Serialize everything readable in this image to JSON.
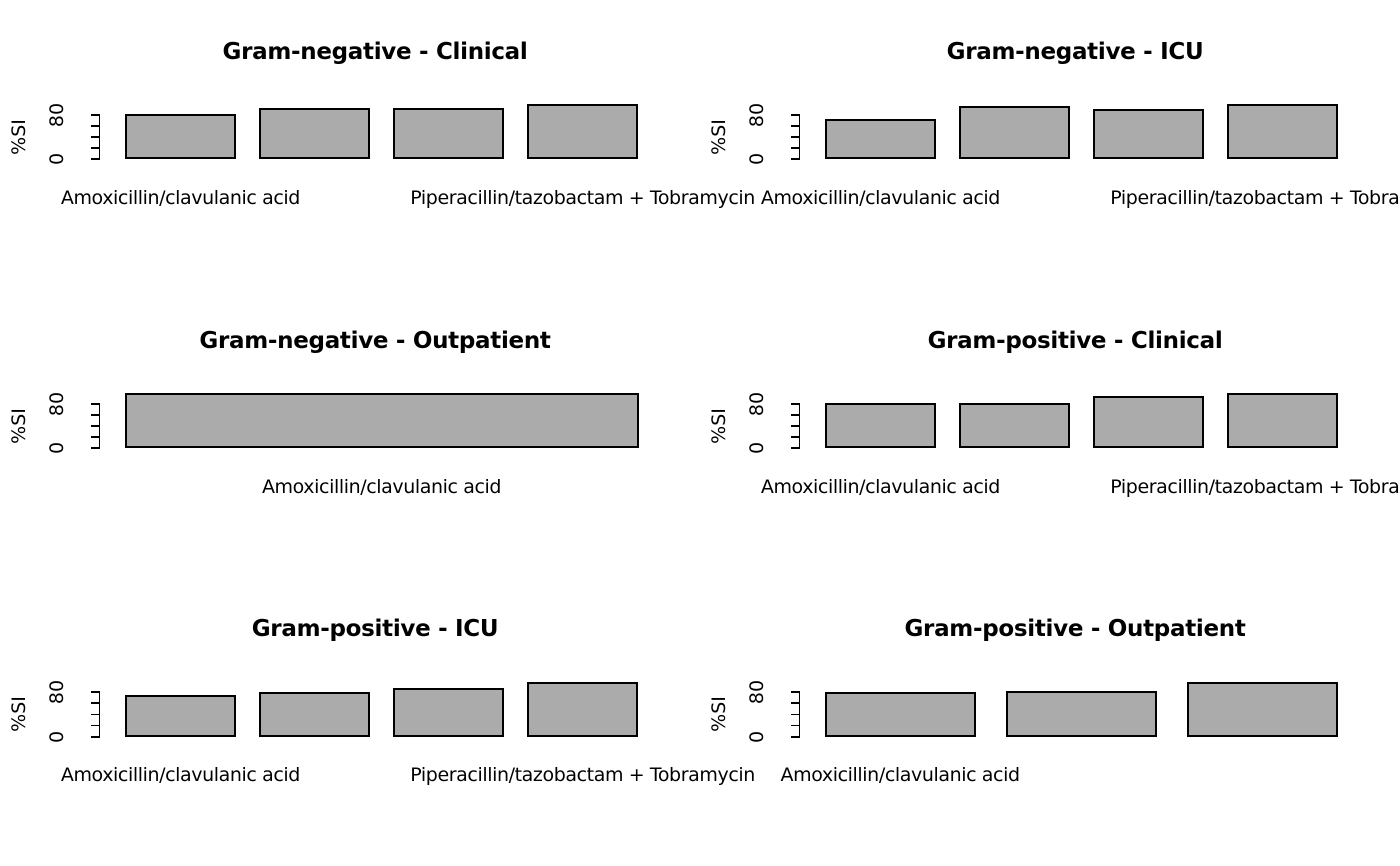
{
  "figure": {
    "background": "#ffffff",
    "bar_fill": "#ababab",
    "bar_border": "#000000",
    "text_color": "#000000",
    "grid": false,
    "layout": "3 rows x 2 columns",
    "ylabel": "%SI",
    "ytick_hi": "80",
    "ytick_lo": "0"
  },
  "chart_data": [
    {
      "type": "bar",
      "title": "Gram-negative - Clinical",
      "ylabel": "%SI",
      "ylim": [
        0,
        100
      ],
      "yticks": [
        0,
        20,
        40,
        60,
        80
      ],
      "ytick_labels_shown": [
        "0",
        "80"
      ],
      "values": [
        81,
        93,
        92,
        100
      ],
      "bar_color": "#ababab",
      "visible_bar_labels": [
        {
          "bar": 1,
          "label": "Amoxicillin/clavulanic acid"
        },
        {
          "bar": 4,
          "label": "Piperacillin/tazobactam + Tobramycin"
        }
      ]
    },
    {
      "type": "bar",
      "title": "Gram-negative - ICU",
      "ylabel": "%SI",
      "ylim": [
        0,
        100
      ],
      "yticks": [
        0,
        20,
        40,
        60,
        80
      ],
      "ytick_labels_shown": [
        "0",
        "80"
      ],
      "values": [
        73,
        96,
        90,
        100
      ],
      "bar_color": "#ababab",
      "visible_bar_labels": [
        {
          "bar": 1,
          "label": "Amoxicillin/clavulanic acid"
        },
        {
          "bar": 4,
          "label": "Piperacillin/tazobactam + Tobramycin"
        }
      ]
    },
    {
      "type": "bar",
      "title": "Gram-negative - Outpatient",
      "ylabel": "%SI",
      "ylim": [
        0,
        100
      ],
      "yticks": [
        0,
        20,
        40,
        60,
        80
      ],
      "ytick_labels_shown": [
        "0",
        "80"
      ],
      "values": [
        100
      ],
      "bar_color": "#ababab",
      "visible_bar_labels": [
        {
          "bar": 1,
          "label": "Amoxicillin/clavulanic acid"
        }
      ]
    },
    {
      "type": "bar",
      "title": "Gram-positive - Clinical",
      "ylabel": "%SI",
      "ylim": [
        0,
        100
      ],
      "yticks": [
        0,
        20,
        40,
        60,
        80
      ],
      "ytick_labels_shown": [
        "0",
        "80"
      ],
      "values": [
        82,
        81,
        93,
        100
      ],
      "bar_color": "#ababab",
      "visible_bar_labels": [
        {
          "bar": 1,
          "label": "Amoxicillin/clavulanic acid"
        },
        {
          "bar": 4,
          "label": "Piperacillin/tazobactam + Tobramycin"
        }
      ]
    },
    {
      "type": "bar",
      "title": "Gram-positive - ICU",
      "ylabel": "%SI",
      "ylim": [
        0,
        100
      ],
      "yticks": [
        0,
        20,
        40,
        60,
        80
      ],
      "ytick_labels_shown": [
        "0",
        "80"
      ],
      "values": [
        76,
        80,
        87,
        99
      ],
      "bar_color": "#ababab",
      "visible_bar_labels": [
        {
          "bar": 1,
          "label": "Amoxicillin/clavulanic acid"
        },
        {
          "bar": 4,
          "label": "Piperacillin/tazobactam + Tobramycin"
        }
      ]
    },
    {
      "type": "bar",
      "title": "Gram-positive - Outpatient",
      "ylabel": "%SI",
      "ylim": [
        0,
        100
      ],
      "yticks": [
        0,
        20,
        40,
        60,
        80
      ],
      "ytick_labels_shown": [
        "0",
        "80"
      ],
      "values": [
        80,
        83,
        98
      ],
      "bar_color": "#ababab",
      "visible_bar_labels": [
        {
          "bar": 1,
          "label": "Amoxicillin/clavulanic acid"
        }
      ]
    }
  ]
}
